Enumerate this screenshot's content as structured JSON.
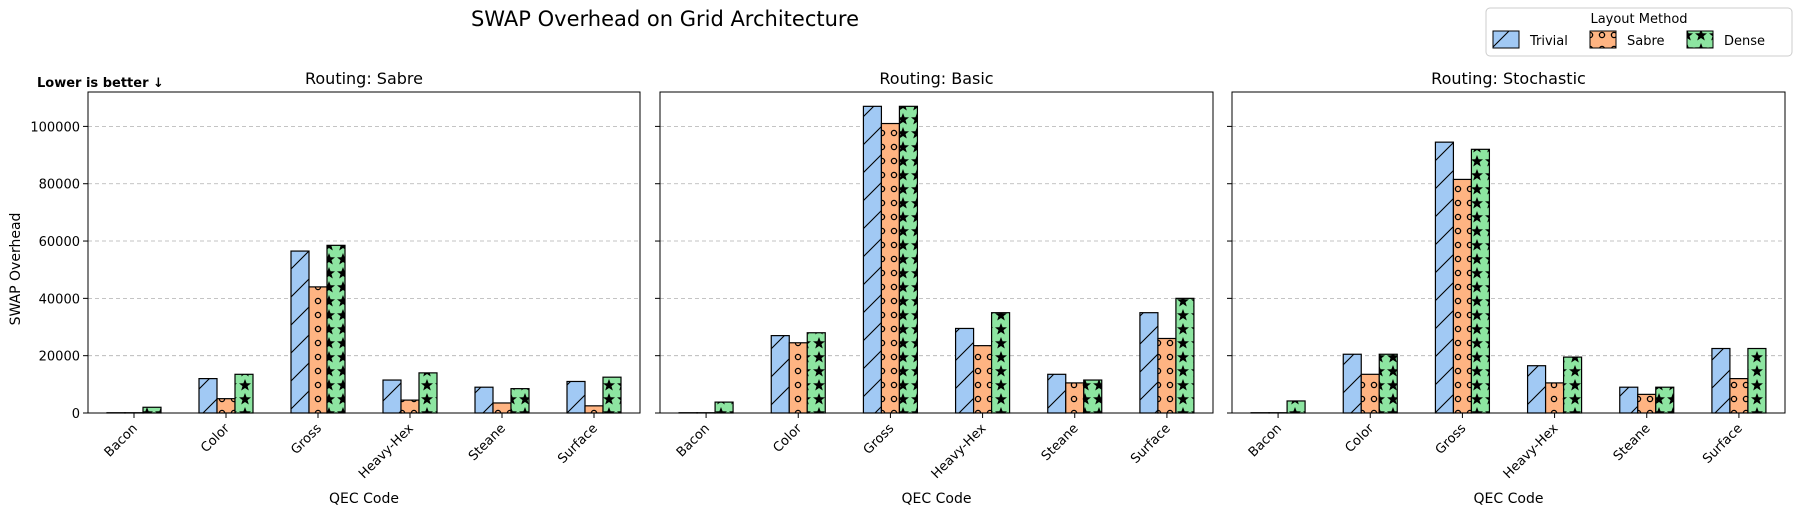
{
  "figure": {
    "title": "SWAP Overhead on Grid Architecture",
    "note": "Lower is better ↓",
    "ylabel": "SWAP Overhead",
    "xlabel": "QEC Code"
  },
  "legend": {
    "title": "Layout Method",
    "placement": "top-right",
    "entries": [
      {
        "name": "Trivial",
        "color": "#a1c9f4",
        "hatch": "diagonal"
      },
      {
        "name": "Sabre",
        "color": "#ffb482",
        "hatch": "circles"
      },
      {
        "name": "Dense",
        "color": "#8de5a1",
        "hatch": "stars"
      }
    ]
  },
  "chart_data": [
    {
      "type": "bar",
      "title": "Routing: Sabre",
      "xlabel": "QEC Code",
      "ylabel": "SWAP Overhead",
      "categories": [
        "Bacon",
        "Color",
        "Gross",
        "Heavy-Hex",
        "Steane",
        "Surface"
      ],
      "ylim": [
        0,
        112000
      ],
      "yticks": [
        0,
        20000,
        40000,
        60000,
        80000,
        100000
      ],
      "grid": "y-dashed",
      "series": [
        {
          "name": "Trivial",
          "values": [
            100,
            12000,
            56500,
            11500,
            9000,
            11000
          ]
        },
        {
          "name": "Sabre",
          "values": [
            100,
            5000,
            44000,
            4500,
            3500,
            2500
          ]
        },
        {
          "name": "Dense",
          "values": [
            2000,
            13500,
            58500,
            14000,
            8500,
            12500
          ]
        }
      ]
    },
    {
      "type": "bar",
      "title": "Routing: Basic",
      "xlabel": "QEC Code",
      "ylabel": "",
      "categories": [
        "Bacon",
        "Color",
        "Gross",
        "Heavy-Hex",
        "Steane",
        "Surface"
      ],
      "ylim": [
        0,
        112000
      ],
      "yticks": [
        0,
        20000,
        40000,
        60000,
        80000,
        100000
      ],
      "grid": "y-dashed",
      "series": [
        {
          "name": "Trivial",
          "values": [
            100,
            27000,
            107000,
            29500,
            13500,
            35000
          ]
        },
        {
          "name": "Sabre",
          "values": [
            100,
            24500,
            101000,
            23500,
            10500,
            26000
          ]
        },
        {
          "name": "Dense",
          "values": [
            3800,
            28000,
            107000,
            35000,
            11500,
            40000
          ]
        }
      ]
    },
    {
      "type": "bar",
      "title": "Routing: Stochastic",
      "xlabel": "QEC Code",
      "ylabel": "",
      "categories": [
        "Bacon",
        "Color",
        "Gross",
        "Heavy-Hex",
        "Steane",
        "Surface"
      ],
      "ylim": [
        0,
        112000
      ],
      "yticks": [
        0,
        20000,
        40000,
        60000,
        80000,
        100000
      ],
      "grid": "y-dashed",
      "series": [
        {
          "name": "Trivial",
          "values": [
            100,
            20500,
            94500,
            16500,
            9000,
            22500
          ]
        },
        {
          "name": "Sabre",
          "values": [
            100,
            13500,
            81500,
            10500,
            6500,
            12000
          ]
        },
        {
          "name": "Dense",
          "values": [
            4200,
            20500,
            92000,
            19500,
            9000,
            22500
          ]
        }
      ]
    }
  ]
}
